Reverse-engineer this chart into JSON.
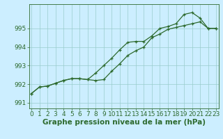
{
  "line1_x": [
    0,
    1,
    2,
    3,
    4,
    5,
    6,
    7,
    8,
    9,
    10,
    11,
    12,
    13,
    14,
    15,
    16,
    17,
    18,
    19,
    20,
    21,
    22,
    23
  ],
  "line1_y": [
    991.5,
    991.85,
    991.9,
    992.05,
    992.2,
    992.3,
    992.3,
    992.25,
    992.2,
    992.25,
    992.7,
    993.1,
    993.55,
    993.8,
    994.0,
    994.5,
    994.7,
    994.95,
    995.05,
    995.15,
    995.25,
    995.35,
    995.0,
    995.0
  ],
  "line2_x": [
    0,
    1,
    2,
    3,
    4,
    5,
    6,
    7,
    8,
    9,
    10,
    11,
    12,
    13,
    14,
    15,
    16,
    17,
    18,
    19,
    20,
    21,
    22,
    23
  ],
  "line2_y": [
    991.5,
    991.85,
    991.9,
    992.05,
    992.2,
    992.3,
    992.3,
    992.25,
    992.6,
    993.0,
    993.4,
    993.85,
    994.25,
    994.3,
    994.3,
    994.6,
    995.0,
    995.1,
    995.25,
    995.75,
    995.85,
    995.55,
    995.0,
    995.0
  ],
  "bg_color": "#cceeff",
  "grid_color": "#99cccc",
  "line_color": "#2d6a2d",
  "xlabel": "Graphe pression niveau de la mer (hPa)",
  "ylim": [
    990.7,
    996.3
  ],
  "yticks": [
    991,
    992,
    993,
    994,
    995
  ],
  "xticks": [
    0,
    1,
    2,
    3,
    4,
    5,
    6,
    7,
    8,
    9,
    10,
    11,
    12,
    13,
    14,
    15,
    16,
    17,
    18,
    19,
    20,
    21,
    22,
    23
  ],
  "xlabel_fontsize": 7.5,
  "tick_fontsize": 6.5,
  "line_width": 0.9,
  "marker_size": 3.5,
  "marker_ew": 0.9
}
